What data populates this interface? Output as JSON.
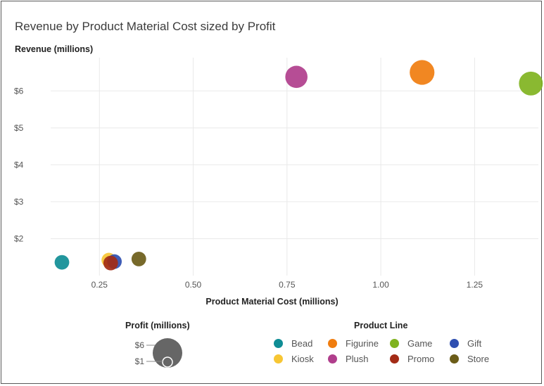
{
  "chart_data": {
    "type": "scatter",
    "title": "Revenue by Product Material Cost sized by Profit",
    "xlabel": "Product Material Cost (millions)",
    "ylabel": "Revenue (millions)",
    "xlim": [
      0.12,
      1.42
    ],
    "ylim": [
      1.0,
      6.9
    ],
    "x_ticks": [
      0.25,
      0.5,
      0.75,
      1.0,
      1.25
    ],
    "x_tick_labels": [
      "0.25",
      "0.50",
      "0.75",
      "1.00",
      "1.25"
    ],
    "y_ticks": [
      2,
      3,
      4,
      5,
      6
    ],
    "y_tick_labels": [
      "$2",
      "$3",
      "$4",
      "$5",
      "$6"
    ],
    "grid": true,
    "size_legend": {
      "title": "Profit (millions)",
      "entries": [
        {
          "label": "$6",
          "profit": 6
        },
        {
          "label": "$1",
          "profit": 1
        }
      ]
    },
    "color_legend": {
      "title": "Product Line",
      "entries": [
        {
          "label": "Bead",
          "color": "#0f8d95"
        },
        {
          "label": "Figurine",
          "color": "#f07d0f"
        },
        {
          "label": "Game",
          "color": "#80b31f"
        },
        {
          "label": "Gift",
          "color": "#2f4fb0"
        },
        {
          "label": "Kiosk",
          "color": "#f7c634"
        },
        {
          "label": "Plush",
          "color": "#b03e8c"
        },
        {
          "label": "Promo",
          "color": "#a32b16"
        },
        {
          "label": "Store",
          "color": "#6b5c18"
        }
      ]
    },
    "points": [
      {
        "series": "Bead",
        "x": 0.15,
        "y": 1.36,
        "profit": 0.4
      },
      {
        "series": "Kiosk",
        "x": 0.275,
        "y": 1.42,
        "profit": 0.4
      },
      {
        "series": "Gift",
        "x": 0.29,
        "y": 1.38,
        "profit": 0.4
      },
      {
        "series": "Promo",
        "x": 0.28,
        "y": 1.34,
        "profit": 0.4
      },
      {
        "series": "Store",
        "x": 0.355,
        "y": 1.45,
        "profit": 0.4
      },
      {
        "series": "Plush",
        "x": 0.775,
        "y": 6.38,
        "profit": 2.0
      },
      {
        "series": "Figurine",
        "x": 1.11,
        "y": 6.5,
        "profit": 2.8
      },
      {
        "series": "Game",
        "x": 1.4,
        "y": 6.2,
        "profit": 2.5
      }
    ]
  }
}
